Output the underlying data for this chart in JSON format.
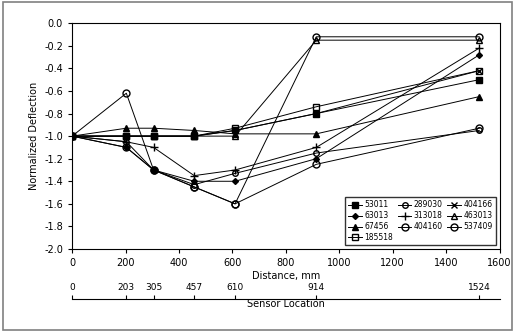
{
  "ylabel": "Normalized Deflection",
  "xlabel_top": "Distance, mm",
  "xlabel_bottom": "Sensor Location",
  "xlim": [
    0,
    1600
  ],
  "ylim": [
    -2.0,
    0.0
  ],
  "yticks": [
    0.0,
    -0.2,
    -0.4,
    -0.6,
    -0.8,
    -1.0,
    -1.2,
    -1.4,
    -1.6,
    -1.8,
    -2.0
  ],
  "xticks_distance": [
    0,
    200,
    400,
    600,
    800,
    1000,
    1200,
    1400,
    1600
  ],
  "xticks_sensor": [
    0,
    203,
    305,
    457,
    610,
    914,
    1524
  ],
  "xticks_sensor_positions": [
    0,
    203,
    305,
    457,
    610,
    914,
    1524
  ],
  "series": {
    "53011": {
      "x": [
        0,
        203,
        305,
        457,
        610,
        914,
        1524
      ],
      "y": [
        -1.0,
        -1.0,
        -1.0,
        -1.0,
        -0.95,
        -0.8,
        -0.5
      ],
      "marker": "s",
      "fillstyle": "full",
      "color": "black",
      "ms": 4
    },
    "63013": {
      "x": [
        0,
        203,
        305,
        457,
        610,
        914,
        1524
      ],
      "y": [
        -1.0,
        -1.1,
        -1.3,
        -1.4,
        -1.4,
        -1.2,
        -0.28
      ],
      "marker": "D",
      "fillstyle": "full",
      "color": "black",
      "ms": 3
    },
    "67456": {
      "x": [
        0,
        203,
        305,
        457,
        610,
        914,
        1524
      ],
      "y": [
        -1.0,
        -0.93,
        -0.93,
        -0.95,
        -0.98,
        -0.98,
        -0.65
      ],
      "marker": "^",
      "fillstyle": "full",
      "color": "black",
      "ms": 4
    },
    "185518": {
      "x": [
        0,
        203,
        305,
        457,
        610,
        914,
        1524
      ],
      "y": [
        -1.0,
        -1.0,
        -1.0,
        -1.0,
        -0.93,
        -0.74,
        -0.42
      ],
      "marker": "s",
      "fillstyle": "none",
      "color": "black",
      "ms": 4
    },
    "289030": {
      "x": [
        0,
        203,
        305,
        457,
        610,
        914,
        1524
      ],
      "y": [
        -1.0,
        -1.05,
        -1.3,
        -1.43,
        -1.33,
        -1.15,
        -0.95
      ],
      "marker": "o",
      "fillstyle": "none",
      "color": "black",
      "ms": 4
    },
    "313018": {
      "x": [
        0,
        203,
        305,
        457,
        610,
        914,
        1524
      ],
      "y": [
        -1.0,
        -1.05,
        -1.1,
        -1.35,
        -1.3,
        -1.1,
        -0.22
      ],
      "marker": "+",
      "fillstyle": "full",
      "color": "black",
      "ms": 6
    },
    "404160": {
      "x": [
        0,
        203,
        305,
        457,
        610,
        914,
        1524
      ],
      "y": [
        -1.0,
        -1.1,
        -1.3,
        -1.45,
        -1.6,
        -1.25,
        -0.93
      ],
      "marker": "o",
      "fillstyle": "none",
      "color": "black",
      "ms": 5
    },
    "404166": {
      "x": [
        0,
        203,
        305,
        457,
        610,
        914,
        1524
      ],
      "y": [
        -1.0,
        -1.0,
        -1.0,
        -1.0,
        -0.95,
        -0.8,
        -0.42
      ],
      "marker": "x",
      "fillstyle": "full",
      "color": "black",
      "ms": 5
    },
    "463013": {
      "x": [
        0,
        203,
        305,
        457,
        610,
        914,
        1524
      ],
      "y": [
        -1.0,
        -1.0,
        -1.0,
        -1.0,
        -1.0,
        -0.15,
        -0.15
      ],
      "marker": "^",
      "fillstyle": "none",
      "color": "black",
      "ms": 4
    },
    "537409": {
      "x": [
        0,
        203,
        305,
        457,
        610,
        914,
        1524
      ],
      "y": [
        -1.0,
        -0.62,
        -1.3,
        -1.45,
        -1.6,
        -0.12,
        -0.12
      ],
      "marker": "o",
      "fillstyle": "none",
      "color": "black",
      "ms": 5
    }
  },
  "legend_order": [
    "53011",
    "63013",
    "67456",
    "185518",
    "289030",
    "313018",
    "404160",
    "404166",
    "463013",
    "537409"
  ],
  "background_color": "white",
  "plot_bg": "white"
}
